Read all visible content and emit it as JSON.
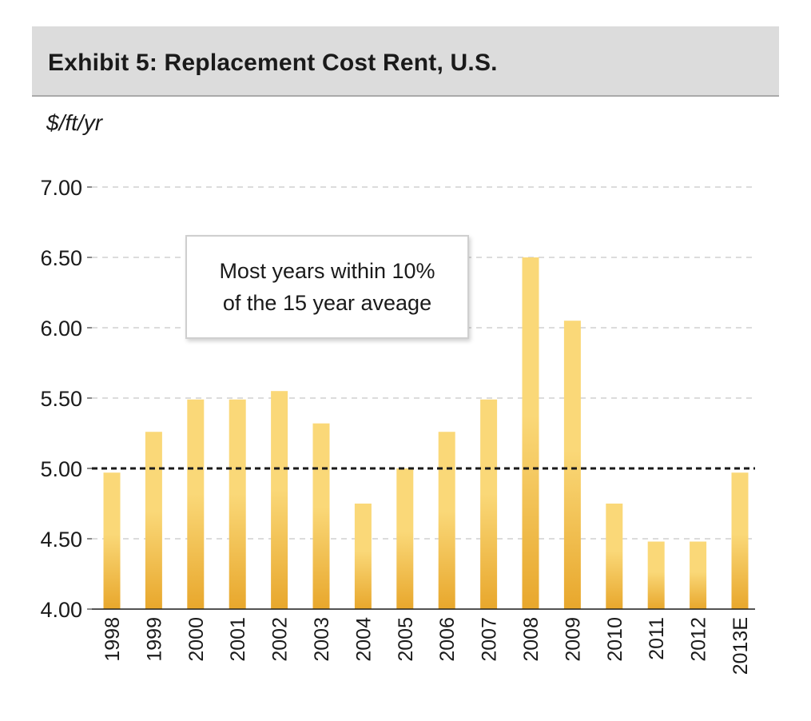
{
  "title": "Exhibit 5: Replacement Cost Rent, U.S.",
  "unit_label": "$/ft/yr",
  "annotation": "Most years within 10%\nof the 15 year aveage",
  "colors": {
    "bar_top": "#fad878",
    "bar_bottom": "#e8a72c",
    "grid": "#c8c8c8",
    "average_line": "#1a1a1a",
    "header_bg": "#dcdcdc"
  },
  "chart_data": {
    "type": "bar",
    "title": "Exhibit 5: Replacement Cost Rent, U.S.",
    "ylabel": "$/ft/yr",
    "xlabel": "",
    "categories": [
      "1998",
      "1999",
      "2000",
      "2001",
      "2002",
      "2003",
      "2004",
      "2005",
      "2006",
      "2007",
      "2008",
      "2009",
      "2010",
      "2011",
      "2012",
      "2013E"
    ],
    "values": [
      4.97,
      5.26,
      5.49,
      5.49,
      5.55,
      5.32,
      4.75,
      5.0,
      5.26,
      5.49,
      6.5,
      6.05,
      4.75,
      4.48,
      4.48,
      4.97
    ],
    "ylim": [
      4.0,
      7.0
    ],
    "yticks": [
      "4.00",
      "4.50",
      "5.00",
      "5.50",
      "6.00",
      "6.50",
      "7.00"
    ],
    "average_line": 5.0,
    "grid": true
  }
}
